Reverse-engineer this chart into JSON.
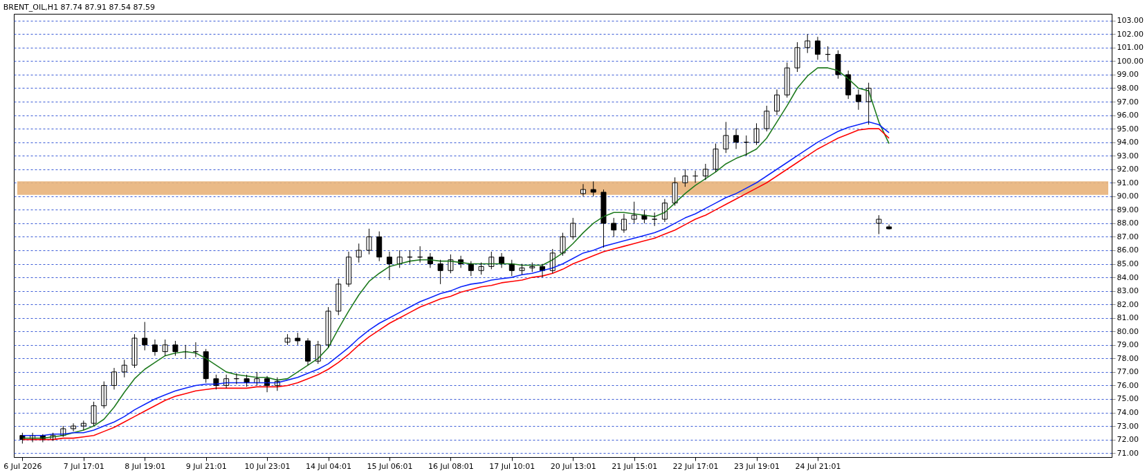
{
  "chart_data": {
    "type": "candlestick",
    "title": "BRENT_OIL,H1 87.74 87.91 87.54 87.59",
    "categories": [
      "6 Jul 2026",
      null,
      null,
      null,
      null,
      null,
      "7 Jul 17:01",
      null,
      null,
      null,
      null,
      null,
      "8 Jul 19:01",
      null,
      null,
      null,
      null,
      null,
      "9 Jul 21:01",
      null,
      null,
      null,
      null,
      null,
      "10 Jul 23:01",
      null,
      null,
      null,
      null,
      null,
      "14 Jul 04:01",
      null,
      null,
      null,
      null,
      null,
      "15 Jul 06:01",
      null,
      null,
      null,
      null,
      null,
      "16 Jul 08:01",
      null,
      null,
      null,
      null,
      null,
      "17 Jul 10:01",
      null,
      null,
      null,
      null,
      null,
      "20 Jul 13:01",
      null,
      null,
      null,
      null,
      null,
      "21 Jul 15:01",
      null,
      null,
      null,
      null,
      null,
      "22 Jul 17:01",
      null,
      null,
      null,
      null,
      null,
      "23 Jul 19:01",
      null,
      null,
      null,
      null,
      null,
      "24 Jul 21:01",
      null,
      null,
      null,
      null,
      null,
      null,
      null,
      null,
      null,
      null,
      null,
      null,
      null,
      null,
      null,
      null,
      null,
      null,
      null,
      null,
      null,
      null,
      null,
      null,
      null,
      null,
      null,
      null
    ],
    "ohlc": [
      [
        72.3,
        72.5,
        71.7,
        72.0
      ],
      [
        72.0,
        72.5,
        71.8,
        72.3
      ],
      [
        72.3,
        72.4,
        71.8,
        72.0
      ],
      [
        72.0,
        72.5,
        71.9,
        72.3
      ],
      [
        72.3,
        73.0,
        72.2,
        72.8
      ],
      [
        72.8,
        73.2,
        72.6,
        73.0
      ],
      [
        73.0,
        73.4,
        72.7,
        73.2
      ],
      [
        73.2,
        74.8,
        73.0,
        74.5
      ],
      [
        74.5,
        76.3,
        74.3,
        76.0
      ],
      [
        76.0,
        77.3,
        75.7,
        77.0
      ],
      [
        77.0,
        77.9,
        76.6,
        77.5
      ],
      [
        77.5,
        79.8,
        77.3,
        79.5
      ],
      [
        79.5,
        80.7,
        78.6,
        79.0
      ],
      [
        79.0,
        79.4,
        78.2,
        78.5
      ],
      [
        78.5,
        79.4,
        78.2,
        79.0
      ],
      [
        79.0,
        79.3,
        78.2,
        78.5
      ],
      [
        78.5,
        79.0,
        78.0,
        78.5
      ],
      [
        78.5,
        79.2,
        78.1,
        78.5
      ],
      [
        78.5,
        78.7,
        76.2,
        76.5
      ],
      [
        76.5,
        76.8,
        75.7,
        76.0
      ],
      [
        76.0,
        76.8,
        75.8,
        76.5
      ],
      [
        76.5,
        76.9,
        76.1,
        76.5
      ],
      [
        76.5,
        76.8,
        75.9,
        76.2
      ],
      [
        76.2,
        77.0,
        76.0,
        76.5
      ],
      [
        76.5,
        76.7,
        75.5,
        76.0
      ],
      [
        76.0,
        76.6,
        75.6,
        76.3
      ],
      [
        79.2,
        79.8,
        79.0,
        79.5
      ],
      [
        79.5,
        79.9,
        79.0,
        79.3
      ],
      [
        79.3,
        79.5,
        77.5,
        77.8
      ],
      [
        77.8,
        79.3,
        77.6,
        79.0
      ],
      [
        79.0,
        81.8,
        78.8,
        81.5
      ],
      [
        81.5,
        83.9,
        81.2,
        83.5
      ],
      [
        83.5,
        85.9,
        83.3,
        85.5
      ],
      [
        85.5,
        86.5,
        85.1,
        86.0
      ],
      [
        86.0,
        87.6,
        85.7,
        87.0
      ],
      [
        87.0,
        87.4,
        85.2,
        85.5
      ],
      [
        85.5,
        85.9,
        83.8,
        85.0
      ],
      [
        85.0,
        86.0,
        84.7,
        85.5
      ],
      [
        85.5,
        86.0,
        85.0,
        85.5
      ],
      [
        85.5,
        86.3,
        85.1,
        85.5
      ],
      [
        85.5,
        85.8,
        84.7,
        85.0
      ],
      [
        85.0,
        85.3,
        83.5,
        84.5
      ],
      [
        84.5,
        85.7,
        84.3,
        85.3
      ],
      [
        85.3,
        85.6,
        84.7,
        85.0
      ],
      [
        85.0,
        85.2,
        84.1,
        84.5
      ],
      [
        84.5,
        85.1,
        84.2,
        84.8
      ],
      [
        84.8,
        85.9,
        84.6,
        85.5
      ],
      [
        85.5,
        85.8,
        84.7,
        85.0
      ],
      [
        85.0,
        85.3,
        84.1,
        84.5
      ],
      [
        84.5,
        85.0,
        84.2,
        84.7
      ],
      [
        84.7,
        85.1,
        84.4,
        84.8
      ],
      [
        84.8,
        85.0,
        84.0,
        84.5
      ],
      [
        84.5,
        86.1,
        84.3,
        85.8
      ],
      [
        85.8,
        87.3,
        85.6,
        87.0
      ],
      [
        87.0,
        88.4,
        86.8,
        88.0
      ],
      [
        90.2,
        90.9,
        90.0,
        90.5
      ],
      [
        90.5,
        91.1,
        90.0,
        90.3
      ],
      [
        90.3,
        90.5,
        86.2,
        88.0
      ],
      [
        88.0,
        88.4,
        87.0,
        87.5
      ],
      [
        87.5,
        88.7,
        87.3,
        88.3
      ],
      [
        88.3,
        89.6,
        88.0,
        88.6
      ],
      [
        88.6,
        89.0,
        88.0,
        88.3
      ],
      [
        88.3,
        88.8,
        87.8,
        88.3
      ],
      [
        88.3,
        89.8,
        88.1,
        89.5
      ],
      [
        89.5,
        91.4,
        89.3,
        91.0
      ],
      [
        91.0,
        92.0,
        90.7,
        91.5
      ],
      [
        91.5,
        91.9,
        91.0,
        91.5
      ],
      [
        91.5,
        92.4,
        91.2,
        92.0
      ],
      [
        92.0,
        93.9,
        91.8,
        93.5
      ],
      [
        93.5,
        95.5,
        93.2,
        94.5
      ],
      [
        94.5,
        95.0,
        93.5,
        94.0
      ],
      [
        94.0,
        94.5,
        93.0,
        94.0
      ],
      [
        94.0,
        95.4,
        93.8,
        95.0
      ],
      [
        95.0,
        96.7,
        94.8,
        96.3
      ],
      [
        96.3,
        97.9,
        96.0,
        97.5
      ],
      [
        97.5,
        99.9,
        97.3,
        99.5
      ],
      [
        99.5,
        101.4,
        99.2,
        101.0
      ],
      [
        101.0,
        102.0,
        100.6,
        101.5
      ],
      [
        101.5,
        101.8,
        100.1,
        100.5
      ],
      [
        100.5,
        101.1,
        100.0,
        100.5
      ],
      [
        100.5,
        100.8,
        98.7,
        99.0
      ],
      [
        99.0,
        99.3,
        97.2,
        97.5
      ],
      [
        97.5,
        97.9,
        96.4,
        97.0
      ],
      [
        97.0,
        98.4,
        95.3,
        98.0
      ],
      [
        88.0,
        88.6,
        87.2,
        88.3
      ],
      [
        87.74,
        87.91,
        87.54,
        87.59
      ],
      null,
      null,
      null,
      null,
      null,
      null,
      null,
      null,
      null,
      null,
      null,
      null,
      null,
      null,
      null,
      null,
      null,
      null,
      null,
      null,
      null
    ],
    "series": [
      {
        "type": "line",
        "color": "#1e7a1e",
        "values": [
          72.1,
          72.1,
          72.1,
          72.2,
          72.3,
          72.5,
          72.7,
          73.0,
          73.5,
          74.4,
          75.5,
          76.5,
          77.2,
          77.7,
          78.2,
          78.4,
          78.5,
          78.4,
          78.0,
          77.5,
          77.0,
          76.8,
          76.7,
          76.6,
          76.6,
          76.4,
          76.5,
          77.0,
          77.5,
          78.0,
          78.8,
          80.2,
          81.5,
          82.7,
          83.7,
          84.3,
          84.8,
          85.0,
          85.2,
          85.3,
          85.3,
          85.2,
          85.2,
          85.1,
          85.0,
          85.0,
          85.0,
          85.0,
          85.0,
          84.9,
          84.9,
          84.9,
          85.3,
          85.8,
          86.5,
          87.3,
          88.0,
          88.5,
          88.8,
          88.8,
          88.7,
          88.6,
          88.5,
          88.8,
          89.5,
          90.2,
          90.8,
          91.3,
          91.8,
          92.4,
          92.8,
          93.1,
          93.5,
          94.3,
          95.5,
          96.7,
          98.0,
          98.9,
          99.5,
          99.5,
          99.3,
          98.7,
          98.0,
          97.8,
          95.5,
          93.9,
          null,
          null,
          null,
          null,
          null,
          null,
          null,
          null,
          null,
          null,
          null,
          null,
          null,
          null,
          null,
          null,
          null,
          null,
          null,
          null,
          null
        ]
      },
      {
        "type": "line",
        "color": "#0b24fb",
        "values": [
          72.3,
          72.3,
          72.3,
          72.4,
          72.4,
          72.5,
          72.5,
          72.7,
          73.0,
          73.3,
          73.7,
          74.2,
          74.6,
          75.0,
          75.3,
          75.6,
          75.8,
          76.0,
          76.1,
          76.1,
          76.2,
          76.2,
          76.2,
          76.2,
          76.2,
          76.2,
          76.4,
          76.6,
          76.9,
          77.2,
          77.6,
          78.2,
          78.8,
          79.5,
          80.1,
          80.6,
          81.0,
          81.4,
          81.8,
          82.2,
          82.5,
          82.8,
          83.0,
          83.3,
          83.5,
          83.6,
          83.8,
          83.9,
          84.0,
          84.2,
          84.3,
          84.5,
          84.7,
          85.0,
          85.4,
          85.8,
          86.0,
          86.3,
          86.5,
          86.7,
          86.9,
          87.1,
          87.3,
          87.6,
          88.0,
          88.4,
          88.7,
          89.1,
          89.5,
          89.9,
          90.2,
          90.6,
          91.0,
          91.5,
          92.0,
          92.5,
          93.0,
          93.5,
          94.0,
          94.4,
          94.8,
          95.1,
          95.3,
          95.5,
          95.3,
          94.7,
          null,
          null,
          null,
          null,
          null,
          null,
          null,
          null,
          null,
          null,
          null,
          null,
          null,
          null,
          null,
          null,
          null,
          null,
          null,
          null,
          null
        ]
      },
      {
        "type": "line",
        "color": "#ff0000",
        "values": [
          72.0,
          72.0,
          72.0,
          72.0,
          72.1,
          72.1,
          72.2,
          72.3,
          72.6,
          72.9,
          73.3,
          73.7,
          74.1,
          74.5,
          74.9,
          75.2,
          75.4,
          75.6,
          75.7,
          75.8,
          75.8,
          75.8,
          75.8,
          75.9,
          75.9,
          75.9,
          76.0,
          76.2,
          76.5,
          76.8,
          77.2,
          77.7,
          78.3,
          79.0,
          79.6,
          80.1,
          80.6,
          81.0,
          81.4,
          81.8,
          82.1,
          82.4,
          82.6,
          82.9,
          83.1,
          83.3,
          83.4,
          83.6,
          83.7,
          83.8,
          84.0,
          84.1,
          84.3,
          84.6,
          85.0,
          85.3,
          85.6,
          85.9,
          86.1,
          86.3,
          86.5,
          86.7,
          86.9,
          87.2,
          87.5,
          87.9,
          88.3,
          88.6,
          89.0,
          89.4,
          89.8,
          90.2,
          90.6,
          91.0,
          91.5,
          92.0,
          92.5,
          93.0,
          93.5,
          93.9,
          94.3,
          94.6,
          94.9,
          95.0,
          95.0,
          94.3,
          null,
          null,
          null,
          null,
          null,
          null,
          null,
          null,
          null,
          null,
          null,
          null,
          null,
          null,
          null,
          null,
          null,
          null,
          null,
          null,
          null
        ]
      }
    ],
    "color": "#000000",
    "bands": [
      {
        "axis": "y",
        "from": 90.1,
        "to": 91.1,
        "color": "#e8b27a"
      }
    ],
    "ylim": [
      70.7,
      103.5
    ],
    "yticks": [
      {
        "value": 71,
        "label": "71.00"
      },
      {
        "value": 72,
        "label": "72.00"
      },
      {
        "value": 73,
        "label": "73.00"
      },
      {
        "value": 74,
        "label": "74.00"
      },
      {
        "value": 75,
        "label": "75.00"
      },
      {
        "value": 76,
        "label": "76.00"
      },
      {
        "value": 77,
        "label": "77.00"
      },
      {
        "value": 78,
        "label": "78.00"
      },
      {
        "value": 79,
        "label": "79.00"
      },
      {
        "value": 80,
        "label": "80.00"
      },
      {
        "value": 81,
        "label": "81.00"
      },
      {
        "value": 82,
        "label": "82.00"
      },
      {
        "value": 83,
        "label": "83.00"
      },
      {
        "value": 84,
        "label": "84.00"
      },
      {
        "value": 85,
        "label": "85.00"
      },
      {
        "value": 86,
        "label": "86.00"
      },
      {
        "value": 87,
        "label": "87.00"
      },
      {
        "value": 88,
        "label": "88.00"
      },
      {
        "value": 89,
        "label": "89.00"
      },
      {
        "value": 90,
        "label": "90.00"
      },
      {
        "value": 91,
        "label": "91.00"
      },
      {
        "value": 92,
        "label": "92.00"
      },
      {
        "value": 93,
        "label": "93.00"
      },
      {
        "value": 94,
        "label": "94.00"
      },
      {
        "value": 95,
        "label": "95.00"
      },
      {
        "value": 96,
        "label": "96.00"
      },
      {
        "value": 97,
        "label": "97.00"
      },
      {
        "value": 98,
        "label": "98.00"
      },
      {
        "value": 99,
        "label": "99.00"
      },
      {
        "value": 100,
        "label": "100.00"
      },
      {
        "value": 101,
        "label": "101.00"
      },
      {
        "value": 102,
        "label": "102.00"
      },
      {
        "value": 103,
        "label": "103.00"
      }
    ],
    "grid": "y",
    "line_style": "solid"
  }
}
